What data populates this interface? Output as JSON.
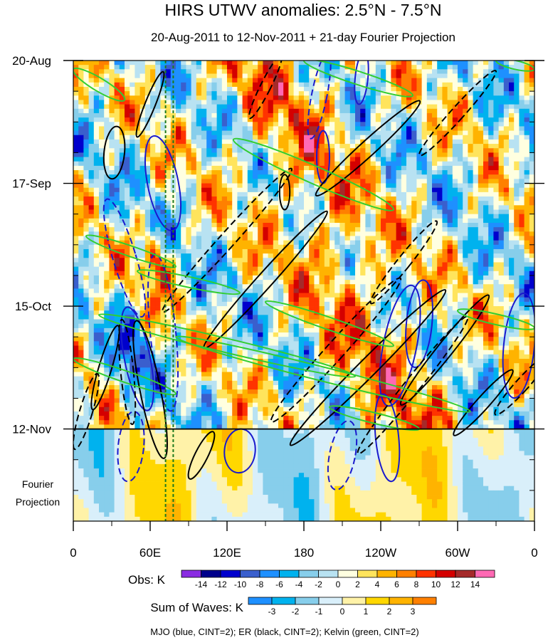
{
  "chart_data": {
    "type": "heatmap",
    "title": "HIRS UTWV anomalies: 2.5°N - 7.5°N",
    "subtitle": "20-Aug-2011 to 12-Nov-2011 + 21-day Fourier Projection",
    "y_axis": {
      "ticks": [
        "20-Aug",
        "17-Sep",
        "15-Oct",
        "12-Nov"
      ],
      "projection_label": "Fourier Projection",
      "projection_label_lines": [
        "Fourier",
        "Projection"
      ],
      "range_days": [
        0,
        105
      ],
      "tick_days": [
        0,
        28,
        56,
        84
      ],
      "projection_start_day": 84
    },
    "x_axis": {
      "ticks": [
        "0",
        "60E",
        "120E",
        "180",
        "120W",
        "60W",
        "0"
      ],
      "tick_lon": [
        0,
        60,
        120,
        180,
        240,
        300,
        360
      ],
      "range_lon": [
        0,
        360
      ]
    },
    "reference_lines_lon": [
      72,
      78
    ],
    "colorbars": [
      {
        "label": "Obs: K",
        "levels": [
          "-14",
          "-12",
          "-10",
          "-8",
          "-6",
          "-4",
          "-2",
          "0",
          "2",
          "4",
          "6",
          "8",
          "10",
          "12",
          "14"
        ],
        "colors": [
          "#8a2be2",
          "#00008b",
          "#0000cd",
          "#3a5fcd",
          "#1e90ff",
          "#00b2ee",
          "#87ceeb",
          "#b8e2f2",
          "#ffffe0",
          "#ffe45c",
          "#ffb300",
          "#ff8000",
          "#ff3300",
          "#d40000",
          "#a52a2a",
          "#ff69b4"
        ]
      },
      {
        "label": "Sum of Waves: K",
        "levels": [
          "-3",
          "-2",
          "-1",
          "0",
          "1",
          "2",
          "3"
        ],
        "colors": [
          "#1e90ff",
          "#00b2ee",
          "#87ceeb",
          "#d9effa",
          "#fff2a8",
          "#ffd700",
          "#ffb300",
          "#ff8000"
        ]
      }
    ],
    "contour_legend": "MJO (blue, CINT=2); ER (black, CINT=2); Kelvin (green, CINT=2)",
    "wave_colors": {
      "MJO": "#1a1acd",
      "ER": "#000000",
      "Kelvin": "#32cd32"
    },
    "wave_contours": {
      "MJO": [
        {
          "lon": 70,
          "day": 28,
          "rx_lon": 12,
          "ry_day": 11,
          "slope": -0.2,
          "dash": false
        },
        {
          "lon": 50,
          "day": 68,
          "rx_lon": 10,
          "ry_day": 12,
          "slope": -0.2,
          "dash": false
        },
        {
          "lon": 40,
          "day": 45,
          "rx_lon": 9,
          "ry_day": 14,
          "slope": -0.3,
          "dash": true
        },
        {
          "lon": 70,
          "day": 62,
          "rx_lon": 10,
          "ry_day": 18,
          "slope": -0.1,
          "dash": true
        },
        {
          "lon": 255,
          "day": 65,
          "rx_lon": 13,
          "ry_day": 14,
          "slope": 0.2,
          "dash": false
        },
        {
          "lon": 270,
          "day": 60,
          "rx_lon": 10,
          "ry_day": 10,
          "slope": 0.1,
          "dash": false
        },
        {
          "lon": 348,
          "day": 65,
          "rx_lon": 12,
          "ry_day": 12,
          "slope": 0.1,
          "dash": false
        },
        {
          "lon": 245,
          "day": 86,
          "rx_lon": 9,
          "ry_day": 10,
          "slope": -0.1,
          "dash": false
        },
        {
          "lon": 210,
          "day": 90,
          "rx_lon": 10,
          "ry_day": 8,
          "slope": 0.2,
          "dash": true
        },
        {
          "lon": 192,
          "day": 8,
          "rx_lon": 6,
          "ry_day": 10,
          "slope": 0.2,
          "dash": true
        },
        {
          "lon": 225,
          "day": 4,
          "rx_lon": 5,
          "ry_day": 6,
          "slope": 0.1,
          "dash": false
        },
        {
          "lon": 130,
          "day": 89,
          "rx_lon": 12,
          "ry_day": 5,
          "slope": 0.1,
          "dash": false
        },
        {
          "lon": 45,
          "day": 88,
          "rx_lon": 10,
          "ry_day": 8,
          "slope": 0.1,
          "dash": true
        },
        {
          "lon": 195,
          "day": 22,
          "rx_lon": 5,
          "ry_day": 6,
          "slope": 0,
          "dash": false
        }
      ],
      "ER": [
        {
          "lon": 32,
          "day": 21,
          "rx_lon": 8,
          "ry_day": 6,
          "slope": 0.1,
          "dash": false
        },
        {
          "lon": 60,
          "day": 75,
          "rx_lon": 8,
          "ry_day": 16,
          "slope": -0.2,
          "dash": false
        },
        {
          "lon": 42,
          "day": 71,
          "rx_lon": 5,
          "ry_day": 12,
          "slope": -0.1,
          "dash": true
        },
        {
          "lon": 120,
          "day": 41,
          "rx_lon": 6,
          "ry_day": 22,
          "slope": 0.9,
          "dash": true
        },
        {
          "lon": 150,
          "day": 50,
          "rx_lon": 6,
          "ry_day": 21,
          "slope": 0.9,
          "dash": false
        },
        {
          "lon": 150,
          "day": 6,
          "rx_lon": 4,
          "ry_day": 8,
          "slope": 0.5,
          "dash": true
        },
        {
          "lon": 230,
          "day": 20,
          "rx_lon": 6,
          "ry_day": 16,
          "slope": 1.1,
          "dash": false
        },
        {
          "lon": 300,
          "day": 12,
          "rx_lon": 5,
          "ry_day": 13,
          "slope": 0.9,
          "dash": true
        },
        {
          "lon": 205,
          "day": 66,
          "rx_lon": 7,
          "ry_day": 22,
          "slope": 0.9,
          "dash": true
        },
        {
          "lon": 230,
          "day": 70,
          "rx_lon": 7,
          "ry_day": 25,
          "slope": 1.0,
          "dash": false
        },
        {
          "lon": 265,
          "day": 74,
          "rx_lon": 6,
          "ry_day": 20,
          "slope": 0.8,
          "dash": true
        },
        {
          "lon": 290,
          "day": 66,
          "rx_lon": 6,
          "ry_day": 16,
          "slope": 0.8,
          "dash": false
        },
        {
          "lon": 320,
          "day": 78,
          "rx_lon": 5,
          "ry_day": 10,
          "slope": 0.9,
          "dash": false
        },
        {
          "lon": 350,
          "day": 74,
          "rx_lon": 5,
          "ry_day": 9,
          "slope": 0.9,
          "dash": true
        },
        {
          "lon": 100,
          "day": 90,
          "rx_lon": 5,
          "ry_day": 6,
          "slope": 0.5,
          "dash": false
        },
        {
          "lon": 10,
          "day": 80,
          "rx_lon": 5,
          "ry_day": 9,
          "slope": 0.3,
          "dash": true
        },
        {
          "lon": 25,
          "day": 70,
          "rx_lon": 5,
          "ry_day": 10,
          "slope": 0.3,
          "dash": false
        },
        {
          "lon": 258,
          "day": 46,
          "rx_lon": 5,
          "ry_day": 12,
          "slope": 0.8,
          "dash": true
        },
        {
          "lon": 165,
          "day": 30,
          "rx_lon": 4,
          "ry_day": 4,
          "slope": 0,
          "dash": false
        },
        {
          "lon": 60,
          "day": 10,
          "rx_lon": 4,
          "ry_day": 8,
          "slope": 0.4,
          "dash": false
        }
      ],
      "Kelvin": [
        {
          "lon0": 0,
          "day0": 2,
          "lon1": 40,
          "day1": 9,
          "width_day": 1.5
        },
        {
          "lon0": 125,
          "day0": 18,
          "lon1": 250,
          "day1": 34,
          "width_day": 2.0
        },
        {
          "lon0": 180,
          "day0": 0,
          "lon1": 265,
          "day1": 8,
          "width_day": 1.5
        },
        {
          "lon0": 10,
          "day0": 40,
          "lon1": 80,
          "day1": 47,
          "width_day": 1.2
        },
        {
          "lon0": 50,
          "day0": 48,
          "lon1": 130,
          "day1": 53,
          "width_day": 1.2
        },
        {
          "lon0": 20,
          "day0": 58,
          "lon1": 220,
          "day1": 72,
          "width_day": 1.6
        },
        {
          "lon0": 150,
          "day0": 55,
          "lon1": 250,
          "day1": 65,
          "width_day": 1.4
        },
        {
          "lon0": 80,
          "day0": 63,
          "lon1": 310,
          "day1": 80,
          "width_day": 1.6
        },
        {
          "lon0": 0,
          "day0": 68,
          "lon1": 80,
          "day1": 76,
          "width_day": 1.3
        },
        {
          "lon0": 300,
          "day0": 57,
          "lon1": 360,
          "day1": 61,
          "width_day": 1.2
        },
        {
          "lon0": 200,
          "day0": 79,
          "lon1": 270,
          "day1": 84,
          "width_day": 1.2
        },
        {
          "lon0": 330,
          "day0": 0,
          "lon1": 360,
          "day1": 2,
          "width_day": 1.0
        }
      ]
    }
  }
}
